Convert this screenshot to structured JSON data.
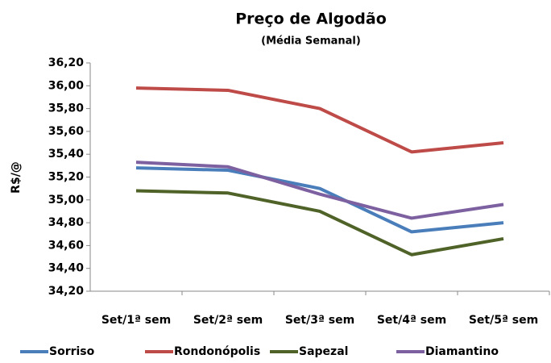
{
  "chart_data": {
    "type": "line",
    "title": "Preço de Algodão",
    "subtitle": "(Média Semanal)",
    "y_label": "R$/@",
    "categories": [
      "Set/1ª sem",
      "Set/2ª sem",
      "Set/3ª sem",
      "Set/4ª sem",
      "Set/5ª sem"
    ],
    "series": [
      {
        "name": "Sorriso",
        "color": "#4a7ebb",
        "label_color": "#4a7ebb",
        "values": [
          35.28,
          35.26,
          35.1,
          34.72,
          34.8
        ]
      },
      {
        "name": "Rondonópolis",
        "color": "#be4b48",
        "label_color": "#c0281e",
        "values": [
          35.98,
          35.96,
          35.8,
          35.42,
          35.5
        ]
      },
      {
        "name": "Sapezal",
        "color": "#4f6228",
        "label_color": "#9bbb59",
        "values": [
          35.08,
          35.06,
          34.9,
          34.52,
          34.66
        ]
      },
      {
        "name": "Diamantino",
        "color": "#7d60a0",
        "label_color": "#7d60a0",
        "values": [
          35.33,
          35.29,
          35.05,
          34.84,
          34.96
        ]
      }
    ],
    "ylim": [
      34.2,
      36.2
    ],
    "yticks": [
      {
        "value": 34.2,
        "label": "34,20"
      },
      {
        "value": 34.4,
        "label": "34,40"
      },
      {
        "value": 34.6,
        "label": "34,60"
      },
      {
        "value": 34.8,
        "label": "34,80"
      },
      {
        "value": 35.0,
        "label": "35,00"
      },
      {
        "value": 35.2,
        "label": "35,20"
      },
      {
        "value": 35.4,
        "label": "35,40"
      },
      {
        "value": 35.6,
        "label": "35,60"
      },
      {
        "value": 35.8,
        "label": "35,80"
      },
      {
        "value": 36.0,
        "label": "36,00"
      },
      {
        "value": 36.2,
        "label": "36,20"
      }
    ],
    "grid": false,
    "legend": "bottom"
  }
}
